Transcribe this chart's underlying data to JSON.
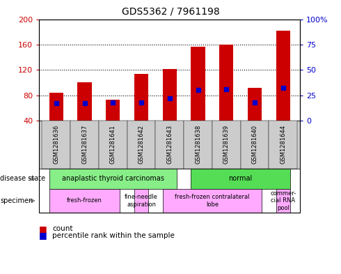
{
  "title": "GDS5362 / 7961198",
  "samples": [
    "GSM1281636",
    "GSM1281637",
    "GSM1281641",
    "GSM1281642",
    "GSM1281643",
    "GSM1281638",
    "GSM1281639",
    "GSM1281640",
    "GSM1281644"
  ],
  "counts": [
    84,
    100,
    73,
    114,
    121,
    156,
    160,
    92,
    182
  ],
  "percentile_ranks": [
    17,
    17,
    18,
    18,
    22,
    30,
    31,
    18,
    32
  ],
  "ylim_left": [
    40,
    200
  ],
  "ylim_right": [
    0,
    100
  ],
  "yticks_left": [
    40,
    80,
    120,
    160,
    200
  ],
  "yticks_right": [
    0,
    25,
    50,
    75,
    100
  ],
  "bar_color": "#cc0000",
  "blue_color": "#0000cc",
  "bar_width": 0.5,
  "disease_states": [
    {
      "label": "anaplastic thyroid carcinomas",
      "start": 0,
      "end": 4,
      "color": "#88ee88"
    },
    {
      "label": "normal",
      "start": 5,
      "end": 8,
      "color": "#55dd55"
    }
  ],
  "specimens": [
    {
      "label": "fresh-frozen",
      "start": 0,
      "end": 2,
      "color": "#ffaaff"
    },
    {
      "label": "fine-needle\naspiration",
      "start": 3,
      "end": 3,
      "color": "#ffaaff"
    },
    {
      "label": "fresh-frozen contralateral\nlobe",
      "start": 4,
      "end": 7,
      "color": "#ffaaff"
    },
    {
      "label": "commer-\ncial RNA\npool",
      "start": 8,
      "end": 8,
      "color": "#ffaaff"
    }
  ],
  "left_axis_color": "#cc0000",
  "right_axis_color": "#0000cc",
  "plot_bg": "#ffffff",
  "tick_band_color": "#cccccc",
  "grid_yticks": [
    80,
    120,
    160
  ]
}
